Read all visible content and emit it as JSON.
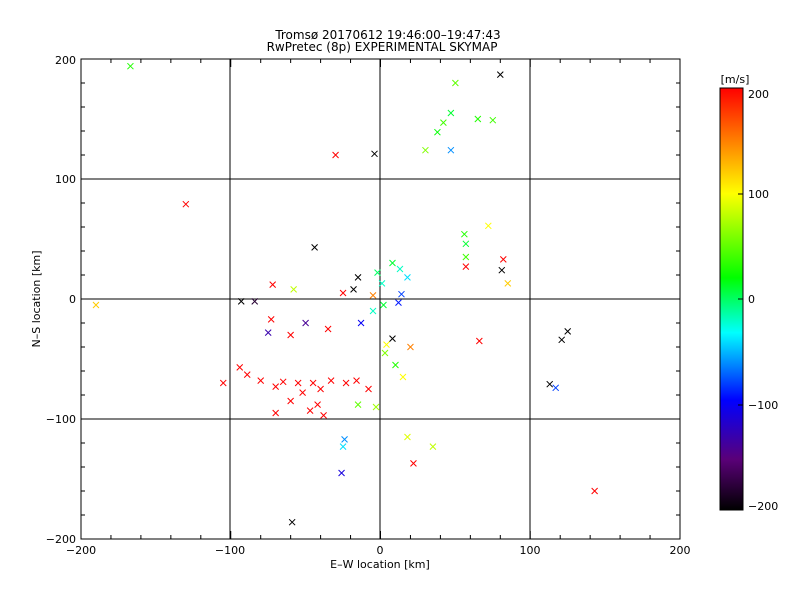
{
  "chart_data": {
    "type": "scatter",
    "title": "Tromsø 20170612 19:46:00–19:47:43",
    "subtitle": "RwPretec (8p) EXPERIMENTAL SKYMAP",
    "xlabel": "E–W location [km]",
    "ylabel": "N–S location [km]",
    "xlim": [
      -200,
      200
    ],
    "ylim": [
      -200,
      200
    ],
    "xticks": [
      "−200",
      "−100",
      "0",
      "100",
      "200"
    ],
    "yticks": [
      "−200",
      "−100",
      "0",
      "100",
      "200"
    ],
    "grid": true,
    "colorbar": {
      "unit": "[m/s]",
      "range": [
        -200,
        200
      ],
      "ticks": [
        "200",
        "100",
        "0",
        "−100",
        "−200"
      ],
      "colormap": [
        "#000000",
        "#5a0078",
        "#0000ff",
        "#00ffff",
        "#00ff00",
        "#ffff00",
        "#ff0000"
      ]
    },
    "series": [
      {
        "marker": "x",
        "points": [
          [
            -167,
            194,
            30
          ],
          [
            -130,
            79,
            200
          ],
          [
            -30,
            120,
            200
          ],
          [
            -4,
            121,
            -200
          ],
          [
            30,
            124,
            60
          ],
          [
            38,
            139,
            20
          ],
          [
            42,
            147,
            40
          ],
          [
            47,
            155,
            10
          ],
          [
            50,
            180,
            50
          ],
          [
            65,
            150,
            30
          ],
          [
            75,
            149,
            40
          ],
          [
            80,
            187,
            -200
          ],
          [
            47,
            124,
            -60
          ],
          [
            -44,
            43,
            -200
          ],
          [
            -15,
            18,
            -200
          ],
          [
            -18,
            8,
            -200
          ],
          [
            -5,
            3,
            150
          ],
          [
            1,
            13,
            -20
          ],
          [
            -2,
            22,
            0
          ],
          [
            8,
            30,
            10
          ],
          [
            13,
            25,
            -20
          ],
          [
            18,
            18,
            -40
          ],
          [
            14,
            4,
            -80
          ],
          [
            12,
            -3,
            -90
          ],
          [
            -72,
            12,
            200
          ],
          [
            -84,
            -2,
            -180
          ],
          [
            -93,
            -2,
            -200
          ],
          [
            -58,
            8,
            80
          ],
          [
            -50,
            -20,
            -140
          ],
          [
            -60,
            -30,
            200
          ],
          [
            -73,
            -17,
            200
          ],
          [
            -75,
            -28,
            -130
          ],
          [
            -94,
            -57,
            200
          ],
          [
            -89,
            -63,
            200
          ],
          [
            -80,
            -68,
            200
          ],
          [
            -70,
            -73,
            200
          ],
          [
            -65,
            -69,
            200
          ],
          [
            -55,
            -70,
            200
          ],
          [
            -52,
            -78,
            200
          ],
          [
            -45,
            -70,
            200
          ],
          [
            -40,
            -75,
            200
          ],
          [
            -33,
            -68,
            200
          ],
          [
            -23,
            -70,
            200
          ],
          [
            -16,
            -68,
            200
          ],
          [
            -8,
            -75,
            200
          ],
          [
            -42,
            -88,
            200
          ],
          [
            -47,
            -93,
            200
          ],
          [
            -38,
            -97,
            200
          ],
          [
            -60,
            -85,
            200
          ],
          [
            -70,
            -95,
            200
          ],
          [
            -15,
            -88,
            50
          ],
          [
            -3,
            -90,
            70
          ],
          [
            -105,
            -70,
            200
          ],
          [
            -24,
            -117,
            -60
          ],
          [
            -25,
            -123,
            -40
          ],
          [
            -26,
            -145,
            -110
          ],
          [
            -59,
            -186,
            -200
          ],
          [
            22,
            -137,
            200
          ],
          [
            35,
            -123,
            80
          ],
          [
            18,
            -115,
            90
          ],
          [
            8,
            -33,
            -200
          ],
          [
            4,
            -38,
            100
          ],
          [
            3,
            -45,
            60
          ],
          [
            10,
            -55,
            30
          ],
          [
            15,
            -65,
            100
          ],
          [
            66,
            -35,
            200
          ],
          [
            20,
            -40,
            150
          ],
          [
            56,
            54,
            30
          ],
          [
            72,
            61,
            100
          ],
          [
            57,
            35,
            40
          ],
          [
            57,
            46,
            10
          ],
          [
            82,
            33,
            200
          ],
          [
            85,
            13,
            120
          ],
          [
            81,
            24,
            -200
          ],
          [
            57,
            27,
            200
          ],
          [
            -25,
            5,
            200
          ],
          [
            2,
            -5,
            10
          ],
          [
            -5,
            -10,
            -20
          ],
          [
            -13,
            -20,
            -100
          ],
          [
            -35,
            -25,
            200
          ],
          [
            125,
            -27,
            -200
          ],
          [
            121,
            -34,
            -200
          ],
          [
            117,
            -74,
            -80
          ],
          [
            113,
            -71,
            -200
          ],
          [
            143,
            -160,
            200
          ],
          [
            -190,
            -5,
            120
          ]
        ]
      }
    ]
  }
}
